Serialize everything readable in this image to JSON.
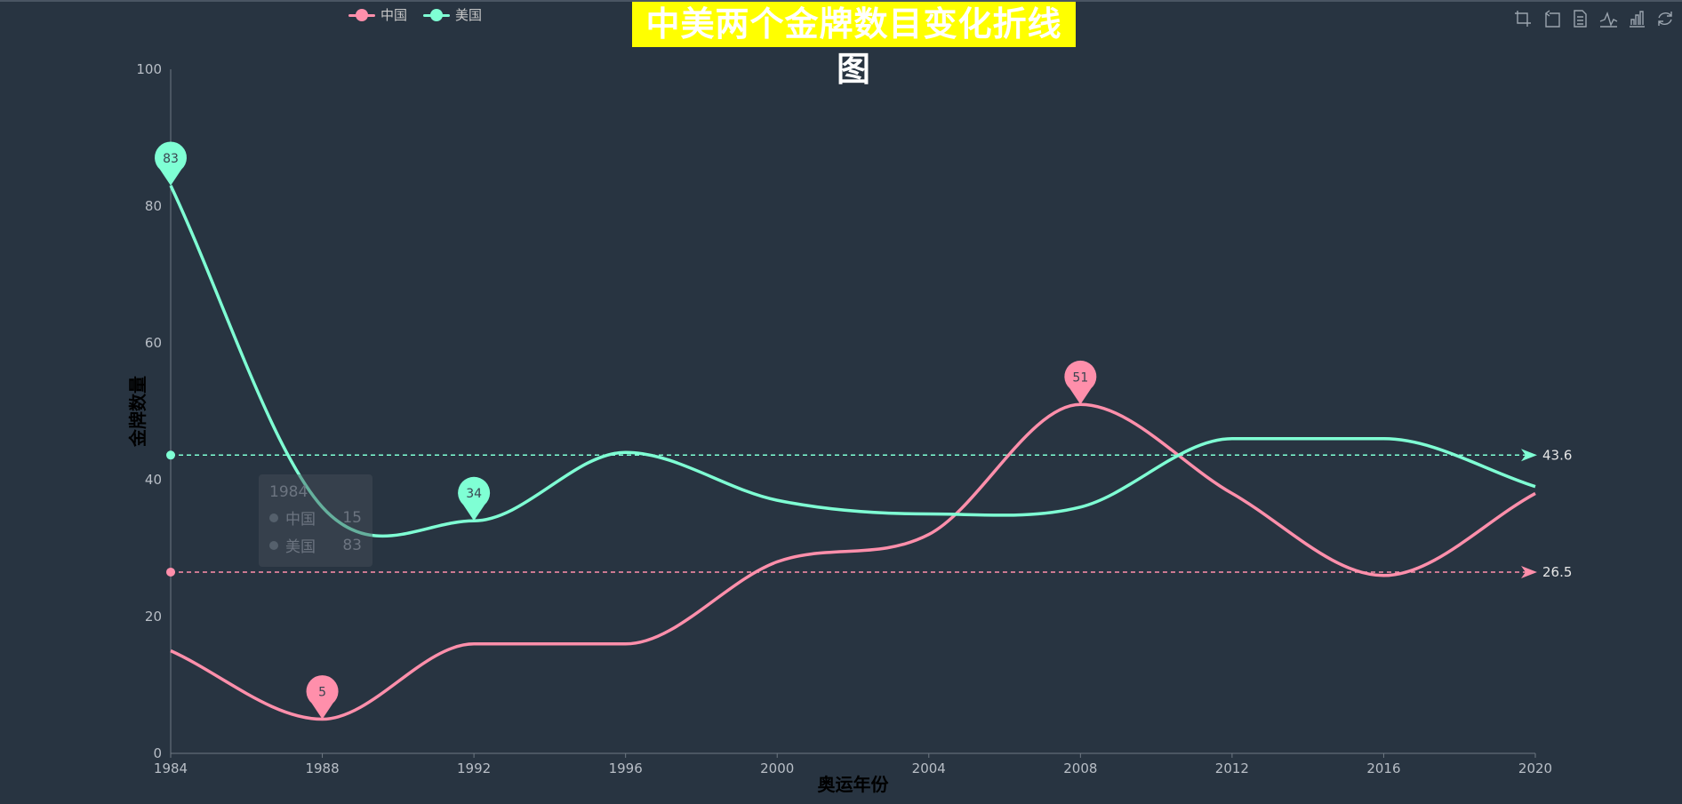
{
  "chart_data": {
    "type": "line",
    "title": "中美两个金牌数目变化折线图",
    "xlabel": "奥运年份",
    "ylabel": "金牌数量",
    "x": [
      "1984",
      "1988",
      "1992",
      "1996",
      "2000",
      "2004",
      "2008",
      "2012",
      "2016",
      "2020"
    ],
    "series": [
      {
        "name": "中国",
        "color": "#ff8fab",
        "values": [
          15,
          5,
          16,
          16,
          28,
          32,
          51,
          38,
          26,
          38
        ]
      },
      {
        "name": "美国",
        "color": "#7fffd4",
        "values": [
          83,
          36,
          34,
          44,
          37,
          35,
          36,
          46,
          46,
          39
        ]
      }
    ],
    "ylim": [
      0,
      100
    ],
    "yticks": [
      0,
      20,
      40,
      60,
      80,
      100
    ],
    "markpoints": [
      {
        "series": "美国",
        "x": "1984",
        "value": 83,
        "label": "83"
      },
      {
        "series": "美国",
        "x": "1992",
        "value": 34,
        "label": "34"
      },
      {
        "series": "中国",
        "x": "1988",
        "value": 5,
        "label": "5"
      },
      {
        "series": "中国",
        "x": "2008",
        "value": 51,
        "label": "51"
      }
    ],
    "marklines": [
      {
        "series": "美国",
        "value": 43.6,
        "label": "43.6"
      },
      {
        "series": "中国",
        "value": 26.5,
        "label": "26.5"
      }
    ],
    "grid": false,
    "legend_position": "top-left"
  },
  "tooltip": {
    "year": "1984",
    "rows": [
      {
        "name": "中国",
        "value": "15"
      },
      {
        "name": "美国",
        "value": "83"
      }
    ]
  },
  "toolbox": [
    "crop-icon",
    "crop-back-icon",
    "data-view-icon",
    "line-chart-icon",
    "bar-chart-icon",
    "restore-icon"
  ]
}
